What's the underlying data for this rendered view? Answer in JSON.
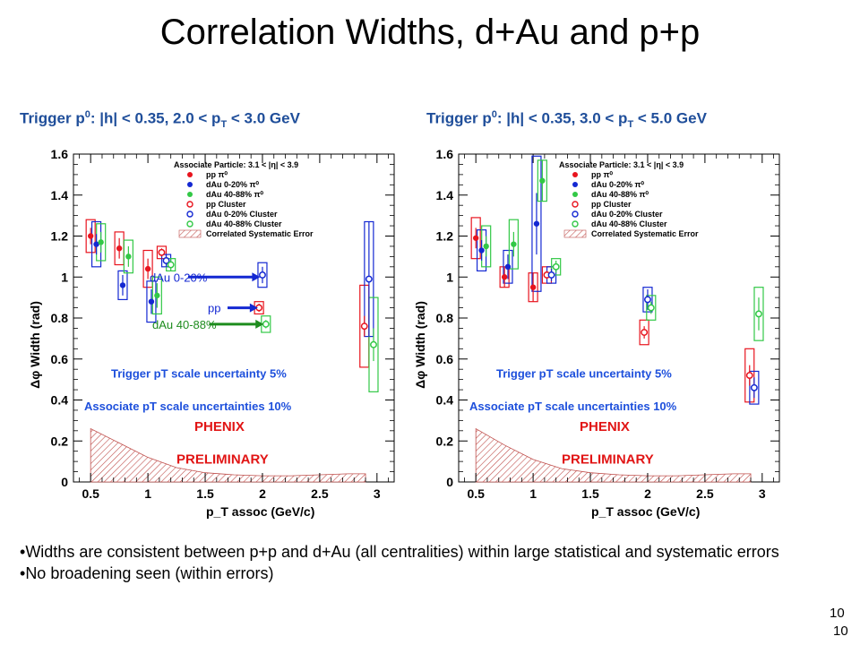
{
  "slide": {
    "title": "Correlation Widths, d+Au and p+p",
    "trigger_left": {
      "pre": "Trigger p",
      "sup": "0",
      "mid": ": |h| < 0.35, 2.0 < p",
      "sub": "T",
      "post": " < 3.0 GeV"
    },
    "trigger_right": {
      "pre": "Trigger p",
      "sup": "0",
      "mid": ": |h| < 0.35, 3.0 < p",
      "sub": "T",
      "post": " < 5.0 GeV"
    },
    "bullets": [
      "Widths are consistent between p+p and d+Au (all centralities) within large statistical and systematic errors",
      "No broadening seen (within errors)"
    ],
    "page_number_1": "10",
    "page_number_2": "10"
  },
  "colors": {
    "pp": "#e8141e",
    "dau020": "#1428d2",
    "dau4088": "#32c846",
    "blue_text": "#1e50dc",
    "phenix_red": "#e11414",
    "hatch": "#c0504d"
  },
  "chart_data": [
    {
      "type": "scatter",
      "xlabel": "p_T assoc (GeV/c)",
      "ylabel": "Δφ Width (rad)",
      "xlim": [
        0.35,
        3.15
      ],
      "ylim": [
        0,
        1.6
      ],
      "x_ticks": [
        "0.5",
        "1",
        "1.5",
        "2",
        "2.5",
        "3"
      ],
      "y_ticks": [
        "0",
        "0.2",
        "0.4",
        "0.6",
        "0.8",
        "1",
        "1.2",
        "1.4",
        "1.6"
      ],
      "legend_title": "Associate Particle: 3.1 < |η| < 3.9",
      "legend_position": "top-right",
      "legend": [
        "pp π⁰",
        "dAu 0-20% π⁰",
        "dAu 40-88% π⁰",
        "pp Cluster",
        "dAu 0-20% Cluster",
        "dAu 40-88% Cluster",
        "Correlated Systematic Error"
      ],
      "annotations": {
        "trigger_unc": "Trigger pT scale uncertainty 5%",
        "assoc_unc": "Associate pT scale uncertainties 10%",
        "phenix": "PHENIX",
        "preliminary": "PRELIMINARY"
      },
      "arrow_labels": [
        "dAu 0-20%",
        "pp",
        "dAu 40-88%"
      ],
      "series": [
        {
          "name": "pp π⁰",
          "kind": "pi0",
          "x": [
            0.5,
            0.75,
            1.0
          ],
          "y": [
            1.2,
            1.14,
            1.04
          ],
          "err": [
            0.04,
            0.05,
            0.05
          ]
        },
        {
          "name": "dAu 0-20% π⁰",
          "kind": "pi0",
          "x": [
            0.55,
            0.78,
            1.03
          ],
          "y": [
            1.16,
            0.96,
            0.88
          ],
          "err": [
            0.05,
            0.05,
            0.06
          ]
        },
        {
          "name": "dAu 40-88% π⁰",
          "kind": "pi0",
          "x": [
            0.59,
            0.83,
            1.08
          ],
          "y": [
            1.17,
            1.1,
            0.91
          ],
          "err": [
            0.05,
            0.05,
            0.06
          ]
        },
        {
          "name": "pp Cluster",
          "kind": "cluster",
          "x": [
            1.12,
            1.97,
            2.89
          ],
          "y": [
            1.12,
            0.85,
            0.76
          ],
          "err": [
            0.02,
            0.02,
            0.05
          ]
        },
        {
          "name": "dAu 0-20% Cluster",
          "kind": "cluster",
          "x": [
            1.16,
            2.0,
            2.93
          ],
          "y": [
            1.08,
            1.01,
            0.99
          ],
          "err": [
            0.03,
            0.04,
            0.28
          ]
        },
        {
          "name": "dAu 40-88% Cluster",
          "kind": "cluster",
          "x": [
            1.2,
            2.03,
            2.97
          ],
          "y": [
            1.06,
            0.77,
            0.67
          ],
          "err": [
            0.03,
            0.02,
            0.08
          ]
        }
      ],
      "systematics": [
        {
          "name": "pp π⁰",
          "x": [
            0.5,
            0.75,
            1.0
          ],
          "y": [
            1.2,
            1.14,
            1.04
          ],
          "sys": [
            0.08,
            0.08,
            0.09
          ]
        },
        {
          "name": "dAu 0-20% π⁰",
          "x": [
            0.55,
            0.78,
            1.03
          ],
          "y": [
            1.16,
            0.96,
            0.88
          ],
          "sys": [
            0.11,
            0.07,
            0.1
          ]
        },
        {
          "name": "dAu 40-88% π⁰",
          "x": [
            0.59,
            0.83,
            1.08
          ],
          "y": [
            1.17,
            1.1,
            0.91
          ],
          "sys": [
            0.09,
            0.08,
            0.09
          ]
        },
        {
          "name": "pp Cluster",
          "x": [
            1.12,
            1.97,
            2.89
          ],
          "y": [
            1.12,
            0.85,
            0.76
          ],
          "sys": [
            0.03,
            0.03,
            0.2
          ]
        },
        {
          "name": "dAu 0-20% Cluster",
          "x": [
            1.16,
            2.0,
            2.93
          ],
          "y": [
            1.08,
            1.01,
            0.99
          ],
          "sys": [
            0.03,
            0.06,
            0.28
          ]
        },
        {
          "name": "dAu 40-88% Cluster",
          "x": [
            1.2,
            2.03,
            2.97
          ],
          "y": [
            1.06,
            0.77,
            0.67
          ],
          "sys": [
            0.03,
            0.04,
            0.23
          ]
        }
      ],
      "correlated_band": {
        "x": [
          0.5,
          0.75,
          1.0,
          1.25,
          1.5,
          1.75,
          2.0,
          2.25,
          2.5,
          2.75,
          2.9
        ],
        "y": [
          0.26,
          0.19,
          0.12,
          0.07,
          0.045,
          0.035,
          0.03,
          0.03,
          0.035,
          0.04,
          0.04
        ]
      }
    },
    {
      "type": "scatter",
      "xlabel": "p_T assoc (GeV/c)",
      "ylabel": "Δφ Width (rad)",
      "xlim": [
        0.35,
        3.15
      ],
      "ylim": [
        0,
        1.6
      ],
      "x_ticks": [
        "0.5",
        "1",
        "1.5",
        "2",
        "2.5",
        "3"
      ],
      "y_ticks": [
        "0",
        "0.2",
        "0.4",
        "0.6",
        "0.8",
        "1",
        "1.2",
        "1.4",
        "1.6"
      ],
      "legend_title": "Associate Particle: 3.1 < |η| < 3.9",
      "legend_position": "top-right",
      "legend": [
        "pp π⁰",
        "dAu 0-20% π⁰",
        "dAu 40-88% π⁰",
        "pp Cluster",
        "dAu 0-20% Cluster",
        "dAu 40-88% Cluster",
        "Correlated Systematic Error"
      ],
      "annotations": {
        "trigger_unc": "Trigger pT scale uncertainty 5%",
        "assoc_unc": "Associate pT scale uncertainties 10%",
        "phenix": "PHENIX",
        "preliminary": "PRELIMINARY"
      },
      "series": [
        {
          "name": "pp π⁰",
          "kind": "pi0",
          "x": [
            0.5,
            0.75,
            1.0
          ],
          "y": [
            1.19,
            1.0,
            0.95
          ],
          "err": [
            0.05,
            0.05,
            0.07
          ]
        },
        {
          "name": "dAu 0-20% π⁰",
          "kind": "pi0",
          "x": [
            0.55,
            0.78,
            1.03
          ],
          "y": [
            1.13,
            1.05,
            1.26
          ],
          "err": [
            0.05,
            0.06,
            0.15
          ]
        },
        {
          "name": "dAu 40-88% π⁰",
          "kind": "pi0",
          "x": [
            0.59,
            0.83,
            1.08
          ],
          "y": [
            1.15,
            1.16,
            1.47
          ],
          "err": [
            0.05,
            0.06,
            0.1
          ]
        },
        {
          "name": "pp Cluster",
          "kind": "cluster",
          "x": [
            1.12,
            1.97,
            2.89
          ],
          "y": [
            1.01,
            0.73,
            0.52
          ],
          "err": [
            0.02,
            0.03,
            0.05
          ]
        },
        {
          "name": "dAu 0-20% Cluster",
          "kind": "cluster",
          "x": [
            1.16,
            2.0,
            2.93
          ],
          "y": [
            1.01,
            0.89,
            0.46
          ],
          "err": [
            0.03,
            0.05,
            0.05
          ]
        },
        {
          "name": "dAu 40-88% Cluster",
          "kind": "cluster",
          "x": [
            1.2,
            2.03,
            2.97
          ],
          "y": [
            1.05,
            0.85,
            0.82
          ],
          "err": [
            0.03,
            0.03,
            0.08
          ]
        }
      ],
      "systematics": [
        {
          "name": "pp π⁰",
          "x": [
            0.5,
            0.75,
            1.0
          ],
          "y": [
            1.19,
            1.0,
            0.95
          ],
          "sys": [
            0.1,
            0.05,
            0.07
          ]
        },
        {
          "name": "dAu 0-20% π⁰",
          "x": [
            0.55,
            0.78,
            1.03
          ],
          "y": [
            1.13,
            1.05,
            1.26
          ],
          "sys": [
            0.1,
            0.08,
            0.33
          ]
        },
        {
          "name": "dAu 40-88% π⁰",
          "x": [
            0.59,
            0.83,
            1.08
          ],
          "y": [
            1.15,
            1.16,
            1.47
          ],
          "sys": [
            0.1,
            0.12,
            0.1
          ]
        },
        {
          "name": "pp Cluster",
          "x": [
            1.12,
            1.97,
            2.89
          ],
          "y": [
            1.01,
            0.73,
            0.52
          ],
          "sys": [
            0.04,
            0.06,
            0.13
          ]
        },
        {
          "name": "dAu 0-20% Cluster",
          "x": [
            1.16,
            2.0,
            2.93
          ],
          "y": [
            1.01,
            0.89,
            0.46
          ],
          "sys": [
            0.04,
            0.06,
            0.08
          ]
        },
        {
          "name": "dAu 40-88% Cluster",
          "x": [
            1.2,
            2.03,
            2.97
          ],
          "y": [
            1.05,
            0.85,
            0.82
          ],
          "sys": [
            0.04,
            0.06,
            0.13
          ]
        }
      ],
      "correlated_band": {
        "x": [
          0.5,
          0.75,
          1.0,
          1.25,
          1.5,
          1.75,
          2.0,
          2.25,
          2.5,
          2.75,
          2.9
        ],
        "y": [
          0.26,
          0.18,
          0.11,
          0.065,
          0.045,
          0.035,
          0.03,
          0.03,
          0.035,
          0.04,
          0.04
        ]
      }
    }
  ]
}
